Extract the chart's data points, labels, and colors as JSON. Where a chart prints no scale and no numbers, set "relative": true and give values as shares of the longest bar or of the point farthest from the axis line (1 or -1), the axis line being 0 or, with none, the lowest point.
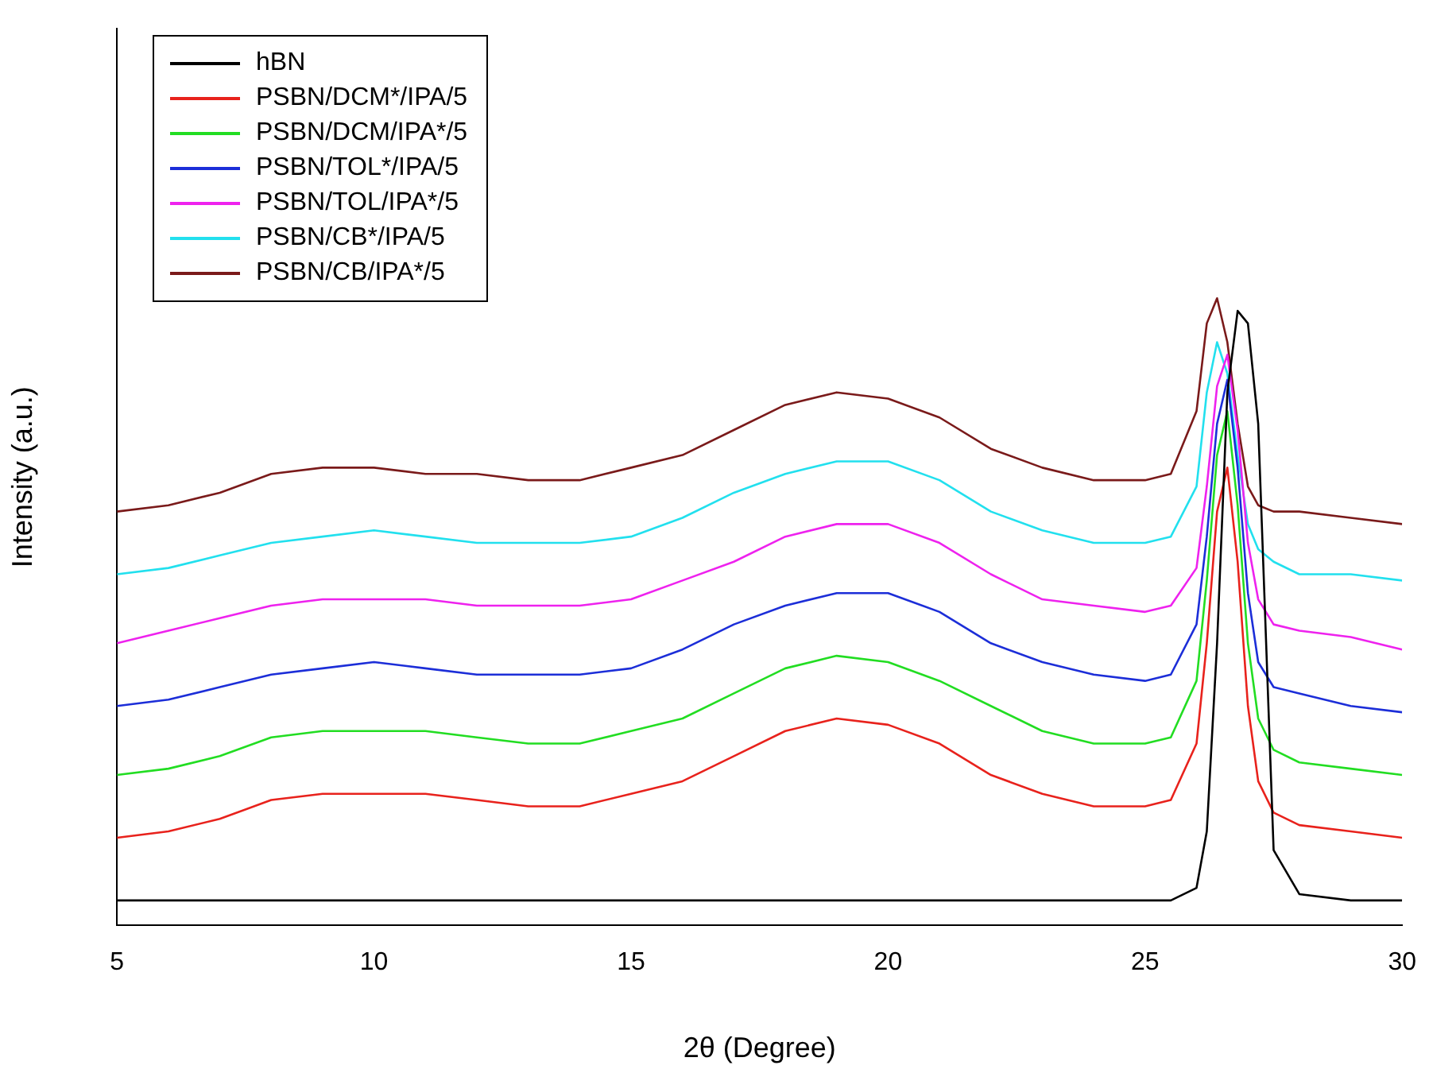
{
  "chart_data": {
    "type": "line",
    "relative": true,
    "xlabel": "2θ (Degree)",
    "ylabel": "Intensity (a.u.)",
    "xlim": [
      5,
      30
    ],
    "xticks": [
      5,
      10,
      15,
      20,
      25,
      30
    ],
    "grid": false,
    "legend": "top left",
    "marker": "none",
    "line_style": "solid",
    "x": [
      5,
      6,
      7,
      8,
      9,
      10,
      11,
      12,
      13,
      14,
      15,
      16,
      17,
      18,
      19,
      20,
      21,
      22,
      23,
      24,
      25,
      25.5,
      26,
      26.2,
      26.4,
      26.6,
      26.8,
      27,
      27.2,
      27.5,
      28,
      29,
      30
    ],
    "series": [
      {
        "name": "hBN",
        "color": "#000000",
        "values": [
          0.04,
          0.04,
          0.04,
          0.04,
          0.04,
          0.04,
          0.04,
          0.04,
          0.04,
          0.04,
          0.04,
          0.04,
          0.04,
          0.04,
          0.04,
          0.04,
          0.04,
          0.04,
          0.04,
          0.04,
          0.04,
          0.04,
          0.06,
          0.15,
          0.45,
          0.85,
          0.98,
          0.96,
          0.8,
          0.12,
          0.05,
          0.04,
          0.04
        ]
      },
      {
        "name": "PSBN/DCM*/IPA/5",
        "color": "#e8221c",
        "values": [
          0.14,
          0.15,
          0.17,
          0.2,
          0.21,
          0.21,
          0.21,
          0.2,
          0.19,
          0.19,
          0.21,
          0.23,
          0.27,
          0.31,
          0.33,
          0.32,
          0.29,
          0.24,
          0.21,
          0.19,
          0.19,
          0.2,
          0.29,
          0.45,
          0.66,
          0.73,
          0.58,
          0.35,
          0.23,
          0.18,
          0.16,
          0.15,
          0.14
        ]
      },
      {
        "name": "PSBN/DCM/IPA*/5",
        "color": "#22dd22",
        "values": [
          0.24,
          0.25,
          0.27,
          0.3,
          0.31,
          0.31,
          0.31,
          0.3,
          0.29,
          0.29,
          0.31,
          0.33,
          0.37,
          0.41,
          0.43,
          0.42,
          0.39,
          0.35,
          0.31,
          0.29,
          0.29,
          0.3,
          0.39,
          0.55,
          0.75,
          0.82,
          0.67,
          0.45,
          0.33,
          0.28,
          0.26,
          0.25,
          0.24
        ]
      },
      {
        "name": "PSBN/TOL*/IPA/5",
        "color": "#1c2ed8",
        "values": [
          0.35,
          0.36,
          0.38,
          0.4,
          0.41,
          0.42,
          0.41,
          0.4,
          0.4,
          0.4,
          0.41,
          0.44,
          0.48,
          0.51,
          0.53,
          0.53,
          0.5,
          0.45,
          0.42,
          0.4,
          0.39,
          0.4,
          0.48,
          0.62,
          0.8,
          0.87,
          0.73,
          0.53,
          0.42,
          0.38,
          0.37,
          0.35,
          0.34
        ]
      },
      {
        "name": "PSBN/TOL/IPA*/5",
        "color": "#ee22ee",
        "values": [
          0.45,
          0.47,
          0.49,
          0.51,
          0.52,
          0.52,
          0.52,
          0.51,
          0.51,
          0.51,
          0.52,
          0.55,
          0.58,
          0.62,
          0.64,
          0.64,
          0.61,
          0.56,
          0.52,
          0.51,
          0.5,
          0.51,
          0.57,
          0.7,
          0.86,
          0.91,
          0.79,
          0.61,
          0.52,
          0.48,
          0.47,
          0.46,
          0.44
        ]
      },
      {
        "name": "PSBN/CB*/IPA/5",
        "color": "#22e0ee",
        "values": [
          0.56,
          0.57,
          0.59,
          0.61,
          0.62,
          0.63,
          0.62,
          0.61,
          0.61,
          0.61,
          0.62,
          0.65,
          0.69,
          0.72,
          0.74,
          0.74,
          0.71,
          0.66,
          0.63,
          0.61,
          0.61,
          0.62,
          0.7,
          0.85,
          0.93,
          0.88,
          0.75,
          0.64,
          0.6,
          0.58,
          0.56,
          0.56,
          0.55
        ]
      },
      {
        "name": "PSBN/CB/IPA*/5",
        "color": "#7a1a1a",
        "values": [
          0.66,
          0.67,
          0.69,
          0.72,
          0.73,
          0.73,
          0.72,
          0.72,
          0.71,
          0.71,
          0.73,
          0.75,
          0.79,
          0.83,
          0.85,
          0.84,
          0.81,
          0.76,
          0.73,
          0.71,
          0.71,
          0.72,
          0.82,
          0.96,
          1,
          0.93,
          0.8,
          0.7,
          0.67,
          0.66,
          0.66,
          0.65,
          0.64
        ]
      }
    ]
  }
}
